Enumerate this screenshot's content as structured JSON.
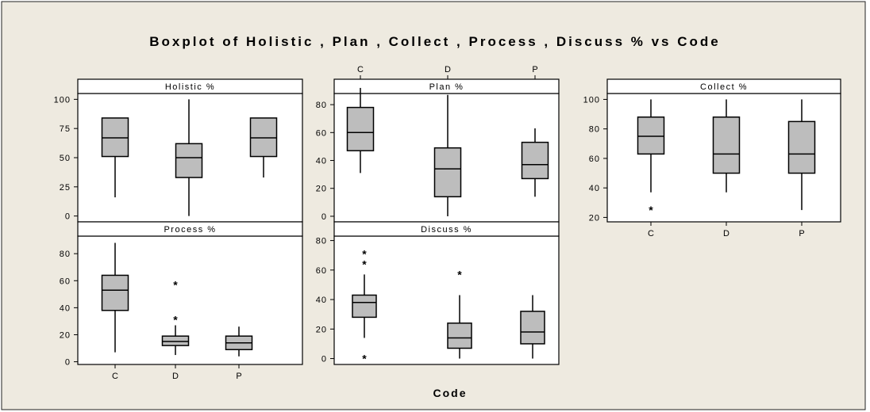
{
  "chart_data": {
    "type": "boxplot",
    "title": "Boxplot of Holistic , Plan , Collect , Process , Discuss % vs Code",
    "xlabel": "Code",
    "categories": [
      "C",
      "D",
      "P"
    ],
    "colors": {
      "background": "#EEEAE0",
      "plot": "#FFFFFF",
      "box": "#BDBDBD",
      "line": "#000000"
    },
    "panels": [
      {
        "id": "holistic",
        "title": "Holistic %",
        "yticks": [
          0,
          25,
          50,
          75,
          100
        ],
        "ylim": [
          -5,
          105
        ],
        "boxes": [
          {
            "category": "C",
            "min": 16,
            "q1": 51,
            "median": 67,
            "q3": 84,
            "max": 84,
            "outliers": []
          },
          {
            "category": "D",
            "min": 0,
            "q1": 33,
            "median": 50,
            "q3": 62,
            "max": 100,
            "outliers": []
          },
          {
            "category": "P",
            "min": 33,
            "q1": 51,
            "median": 67,
            "q3": 84,
            "max": 84,
            "outliers": []
          }
        ]
      },
      {
        "id": "plan",
        "title": "Plan %",
        "yticks": [
          0,
          20,
          40,
          60,
          80
        ],
        "ylim": [
          -4,
          88
        ],
        "boxes": [
          {
            "category": "C",
            "min": 31,
            "q1": 47,
            "median": 60,
            "q3": 78,
            "max": 92,
            "outliers": []
          },
          {
            "category": "D",
            "min": 0,
            "q1": 14,
            "median": 34,
            "q3": 49,
            "max": 87,
            "outliers": []
          },
          {
            "category": "P",
            "min": 14,
            "q1": 27,
            "median": 37,
            "q3": 53,
            "max": 63,
            "outliers": []
          }
        ]
      },
      {
        "id": "collect",
        "title": "Collect %",
        "yticks": [
          20,
          40,
          60,
          80,
          100
        ],
        "ylim": [
          17,
          104
        ],
        "boxes": [
          {
            "category": "C",
            "min": 37,
            "q1": 63,
            "median": 75,
            "q3": 88,
            "max": 100,
            "outliers": [
              25
            ]
          },
          {
            "category": "D",
            "min": 37,
            "q1": 50,
            "median": 63,
            "q3": 88,
            "max": 100,
            "outliers": []
          },
          {
            "category": "P",
            "min": 25,
            "q1": 50,
            "median": 63,
            "q3": 85,
            "max": 100,
            "outliers": []
          }
        ]
      },
      {
        "id": "process",
        "title": "Process %",
        "yticks": [
          0,
          20,
          40,
          60,
          80
        ],
        "ylim": [
          -2,
          93
        ],
        "boxes": [
          {
            "category": "C",
            "min": 7,
            "q1": 38,
            "median": 53,
            "q3": 64,
            "max": 88,
            "outliers": []
          },
          {
            "category": "D",
            "min": 5,
            "q1": 12,
            "median": 15,
            "q3": 19,
            "max": 27,
            "outliers": [
              31,
              57
            ]
          },
          {
            "category": "P",
            "min": 4,
            "q1": 9,
            "median": 14,
            "q3": 19,
            "max": 26,
            "outliers": []
          }
        ]
      },
      {
        "id": "discuss",
        "title": "Discuss %",
        "yticks": [
          0,
          20,
          40,
          60,
          80
        ],
        "ylim": [
          -4,
          83
        ],
        "boxes": [
          {
            "category": "C",
            "min": 14,
            "q1": 28,
            "median": 38,
            "q3": 43,
            "max": 57,
            "outliers": [
              0,
              64,
              71
            ]
          },
          {
            "category": "D",
            "min": 0,
            "q1": 7,
            "median": 14,
            "q3": 24,
            "max": 43,
            "outliers": [
              57
            ]
          },
          {
            "category": "P",
            "min": 0,
            "q1": 10,
            "median": 18,
            "q3": 32,
            "max": 43,
            "outliers": []
          }
        ]
      }
    ]
  }
}
